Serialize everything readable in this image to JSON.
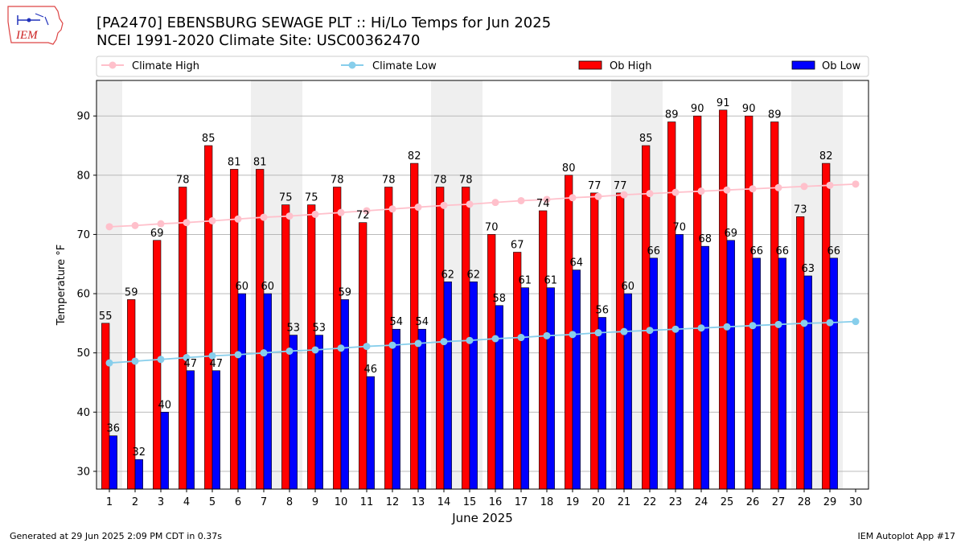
{
  "header": {
    "title_line1": "[PA2470] EBENSBURG SEWAGE PLT :: Hi/Lo Temps for Jun 2025",
    "title_line2": "NCEI 1991-2020 Climate Site: USC00362470"
  },
  "logo": {
    "text": "IEM"
  },
  "footer": {
    "left": "Generated at 29 Jun 2025 2:09 PM CDT in 0.37s",
    "right": "IEM Autoplot App #17"
  },
  "colors": {
    "ob_high": "#ff0000",
    "ob_low": "#0000ff",
    "climate_high": "#ffc0cb",
    "climate_low": "#87ceeb",
    "weekend_band": "#efefef",
    "grid": "#b0b0b0"
  },
  "chart_data": {
    "type": "bar",
    "title": "[PA2470] EBENSBURG SEWAGE PLT :: Hi/Lo Temps for Jun 2025",
    "subtitle": "NCEI 1991-2020 Climate Site: USC00362470",
    "xlabel": "June 2025",
    "ylabel": "Temperature °F",
    "ylim": [
      27,
      96
    ],
    "yticks": [
      30,
      40,
      50,
      60,
      70,
      80,
      90
    ],
    "grid": "horizontal",
    "legend_position": "top",
    "legend": [
      "Climate High",
      "Climate Low",
      "Ob High",
      "Ob Low"
    ],
    "x": [
      1,
      2,
      3,
      4,
      5,
      6,
      7,
      8,
      9,
      10,
      11,
      12,
      13,
      14,
      15,
      16,
      17,
      18,
      19,
      20,
      21,
      22,
      23,
      24,
      25,
      26,
      27,
      28,
      29,
      30
    ],
    "shaded_days": [
      1,
      7,
      8,
      14,
      15,
      21,
      22,
      28,
      29
    ],
    "series": [
      {
        "name": "Ob High",
        "kind": "bar",
        "values": [
          55,
          59,
          69,
          78,
          85,
          81,
          81,
          75,
          75,
          78,
          72,
          78,
          82,
          78,
          78,
          70,
          67,
          74,
          80,
          77,
          77,
          85,
          89,
          90,
          91,
          90,
          89,
          73,
          82,
          null
        ]
      },
      {
        "name": "Ob Low",
        "kind": "bar",
        "values": [
          36,
          32,
          40,
          47,
          47,
          60,
          60,
          53,
          53,
          59,
          46,
          54,
          54,
          62,
          62,
          58,
          61,
          61,
          64,
          56,
          60,
          66,
          70,
          68,
          69,
          66,
          66,
          63,
          66,
          null
        ]
      },
      {
        "name": "Climate High",
        "kind": "line",
        "values": [
          71.3,
          71.5,
          71.8,
          72.0,
          72.3,
          72.6,
          72.9,
          73.1,
          73.4,
          73.7,
          74.0,
          74.3,
          74.6,
          74.9,
          75.1,
          75.4,
          75.7,
          75.9,
          76.2,
          76.4,
          76.7,
          76.9,
          77.1,
          77.3,
          77.5,
          77.7,
          77.9,
          78.1,
          78.3,
          78.5
        ]
      },
      {
        "name": "Climate Low",
        "kind": "line",
        "values": [
          48.3,
          48.6,
          48.9,
          49.2,
          49.5,
          49.7,
          50.0,
          50.3,
          50.5,
          50.8,
          51.1,
          51.3,
          51.6,
          51.9,
          52.1,
          52.4,
          52.6,
          52.9,
          53.1,
          53.4,
          53.6,
          53.8,
          54.0,
          54.2,
          54.4,
          54.6,
          54.8,
          55.0,
          55.1,
          55.3
        ]
      }
    ]
  }
}
